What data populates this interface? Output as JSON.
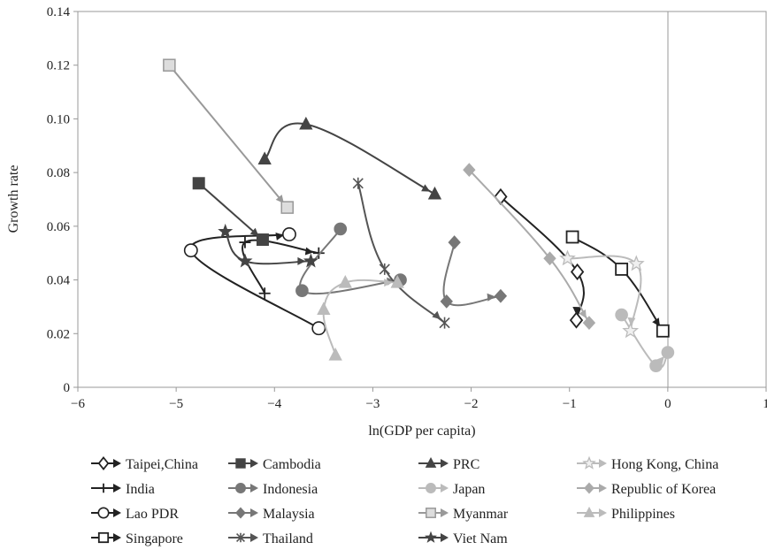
{
  "chart_data": {
    "type": "scatter",
    "xlabel": "ln(GDP per capita)",
    "ylabel": "Growth rate",
    "xlim": [
      -6,
      1
    ],
    "ylim": [
      0,
      0.14
    ],
    "x_ticks": [
      "−6",
      "−5",
      "−4",
      "−3",
      "−2",
      "−1",
      "0",
      "1"
    ],
    "y_ticks": [
      "0",
      "0.02",
      "0.04",
      "0.06",
      "0.08",
      "0.10",
      "0.12",
      "0.14"
    ],
    "grid": false,
    "legend_position": "bottom",
    "series": [
      {
        "name": "Taipei,China",
        "color": "#222222",
        "marker": "diamond-open",
        "points": [
          [
            -1.7,
            0.071
          ],
          [
            -0.92,
            0.043
          ],
          [
            -0.93,
            0.025
          ]
        ]
      },
      {
        "name": "India",
        "color": "#222222",
        "marker": "plus",
        "points": [
          [
            -4.1,
            0.035
          ],
          [
            -4.3,
            0.054
          ],
          [
            -3.55,
            0.05
          ]
        ]
      },
      {
        "name": "Lao PDR",
        "color": "#222222",
        "marker": "circle-open",
        "points": [
          [
            -3.55,
            0.022
          ],
          [
            -4.85,
            0.051
          ],
          [
            -3.85,
            0.057
          ]
        ]
      },
      {
        "name": "Singapore",
        "color": "#222222",
        "marker": "square-open",
        "points": [
          [
            -0.97,
            0.056
          ],
          [
            -0.47,
            0.044
          ],
          [
            -0.05,
            0.021
          ]
        ]
      },
      {
        "name": "Cambodia",
        "color": "#444444",
        "marker": "square",
        "points": [
          [
            -4.77,
            0.076
          ],
          [
            -4.12,
            0.055
          ]
        ]
      },
      {
        "name": "Indonesia",
        "color": "#777777",
        "marker": "circle",
        "points": [
          [
            -3.33,
            0.059
          ],
          [
            -3.72,
            0.036
          ],
          [
            -2.72,
            0.04
          ]
        ]
      },
      {
        "name": "Malaysia",
        "color": "#777777",
        "marker": "diamond",
        "points": [
          [
            -2.17,
            0.054
          ],
          [
            -2.25,
            0.032
          ],
          [
            -1.7,
            0.034
          ]
        ]
      },
      {
        "name": "Thailand",
        "color": "#555555",
        "marker": "asterisk",
        "points": [
          [
            -3.15,
            0.076
          ],
          [
            -2.88,
            0.044
          ],
          [
            -2.27,
            0.024
          ]
        ]
      },
      {
        "name": "PRC",
        "color": "#444444",
        "marker": "triangle",
        "points": [
          [
            -4.1,
            0.085
          ],
          [
            -3.68,
            0.098
          ],
          [
            -2.37,
            0.072
          ]
        ]
      },
      {
        "name": "Japan",
        "color": "#bbbbbb",
        "marker": "circle",
        "points": [
          [
            -0.47,
            0.027
          ],
          [
            -0.12,
            0.008
          ],
          [
            0.0,
            0.013
          ]
        ]
      },
      {
        "name": "Myanmar",
        "color": "#999999",
        "marker": "square-light",
        "points": [
          [
            -5.07,
            0.12
          ],
          [
            -3.87,
            0.067
          ]
        ]
      },
      {
        "name": "Viet Nam",
        "color": "#444444",
        "marker": "star",
        "points": [
          [
            -4.5,
            0.058
          ],
          [
            -4.3,
            0.047
          ],
          [
            -3.63,
            0.047
          ]
        ]
      },
      {
        "name": "Hong Kong, China",
        "color": "#bbbbbb",
        "marker": "star-light",
        "points": [
          [
            -1.02,
            0.048
          ],
          [
            -0.32,
            0.046
          ],
          [
            -0.38,
            0.021
          ]
        ]
      },
      {
        "name": "Republic of Korea",
        "color": "#aaaaaa",
        "marker": "diamond",
        "points": [
          [
            -2.02,
            0.081
          ],
          [
            -1.2,
            0.048
          ],
          [
            -0.8,
            0.024
          ]
        ]
      },
      {
        "name": "Philippines",
        "color": "#bbbbbb",
        "marker": "triangle",
        "points": [
          [
            -3.38,
            0.012
          ],
          [
            -3.5,
            0.029
          ],
          [
            -3.28,
            0.039
          ],
          [
            -2.75,
            0.039
          ]
        ]
      }
    ]
  }
}
